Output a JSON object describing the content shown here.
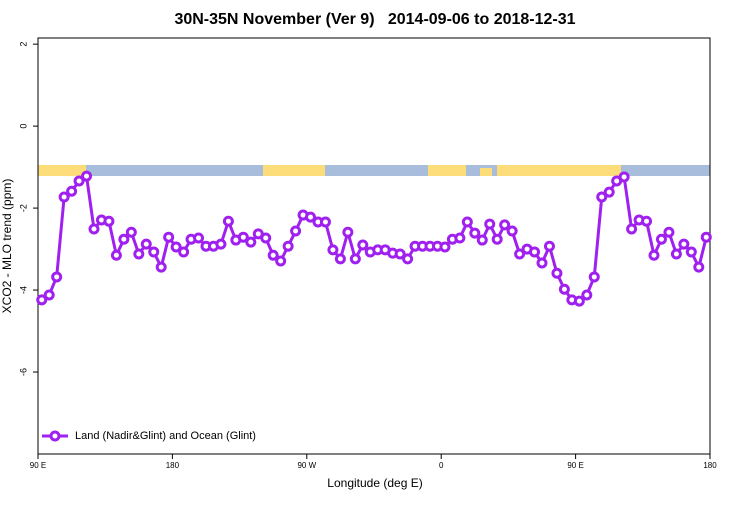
{
  "chart_data": {
    "type": "line",
    "title": "30N-35N November (Ver 9)   2014-09-06 to 2018-12-31",
    "xlabel": "Longitude (deg E)",
    "ylabel": "XCO2 - MLO trend (ppm)",
    "xlim": [
      90,
      540
    ],
    "ylim": [
      -8,
      2.15
    ],
    "xticks": [
      {
        "value": 90,
        "label": "90 E"
      },
      180,
      {
        "value": 270,
        "label": "90 W"
      },
      {
        "value": 360,
        "label": "0"
      },
      {
        "value": 450,
        "label": "90 E"
      },
      {
        "value": 540,
        "label": "180"
      }
    ],
    "yticks": [
      -6,
      -4,
      -2,
      0,
      2
    ],
    "legend": "bottom-left",
    "x": [
      92.5,
      97.5,
      102.5,
      107.5,
      112.5,
      117.5,
      122.5,
      127.5,
      132.5,
      137.5,
      142.5,
      147.5,
      152.5,
      157.5,
      162.5,
      167.5,
      172.5,
      177.5,
      182.5,
      187.5,
      192.5,
      197.5,
      202.5,
      207.5,
      212.5,
      217.5,
      222.5,
      227.5,
      232.5,
      237.5,
      242.5,
      247.5,
      252.5,
      257.5,
      262.5,
      267.5,
      272.5,
      277.5,
      282.5,
      287.5,
      292.5,
      297.5,
      302.5,
      307.5,
      312.5,
      317.5,
      322.5,
      327.5,
      332.5,
      337.5,
      342.5,
      347.5,
      352.5,
      357.5,
      362.5,
      367.5,
      372.5,
      377.5,
      382.5,
      387.5,
      392.5,
      397.5,
      402.5,
      407.5,
      412.5,
      417.5,
      422.5,
      427.5,
      432.5,
      437.5,
      442.5,
      447.5,
      452.5,
      457.5,
      462.5,
      467.5,
      472.5,
      477.5,
      482.5,
      487.5,
      492.5,
      497.5,
      502.5,
      507.5,
      512.5,
      517.5,
      522.5,
      527.5,
      532.5,
      537.5
    ],
    "series": [
      {
        "name": "Land (Nadir&Glint) and Ocean (Glint)",
        "color": "#a020f0",
        "values": [
          -4.24,
          -4.12,
          -3.68,
          -1.73,
          -1.59,
          -1.34,
          -1.22,
          -2.51,
          -2.29,
          -2.32,
          -3.15,
          -2.76,
          -2.59,
          -3.12,
          -2.88,
          -3.07,
          -3.44,
          -2.71,
          -2.95,
          -3.07,
          -2.76,
          -2.73,
          -2.93,
          -2.93,
          -2.88,
          -2.32,
          -2.78,
          -2.71,
          -2.83,
          -2.63,
          -2.73,
          -3.15,
          -3.29,
          -2.93,
          -2.56,
          -2.17,
          -2.22,
          -2.34,
          -2.34,
          -3.02,
          -3.24,
          -2.59,
          -3.24,
          -2.9,
          -3.07,
          -3.02,
          -3.02,
          -3.1,
          -3.12,
          -3.24,
          -2.93,
          -2.93,
          -2.93,
          -2.93,
          -2.95,
          -2.76,
          -2.73,
          -2.34,
          -2.61,
          -2.78,
          -2.39,
          -2.76,
          -2.41,
          -2.56,
          -3.12,
          -3,
          -3.07,
          -3.34,
          -2.93,
          -3.59,
          -3.98,
          -4.24,
          -4.27,
          -4.12,
          -3.68,
          -1.73,
          -1.61,
          -1.34,
          -1.24,
          -2.51,
          -2.29,
          -2.32,
          -3.15,
          -2.76,
          -2.59,
          -3.12,
          -2.88,
          -3.07,
          -3.44,
          -2.71
        ]
      }
    ]
  }
}
